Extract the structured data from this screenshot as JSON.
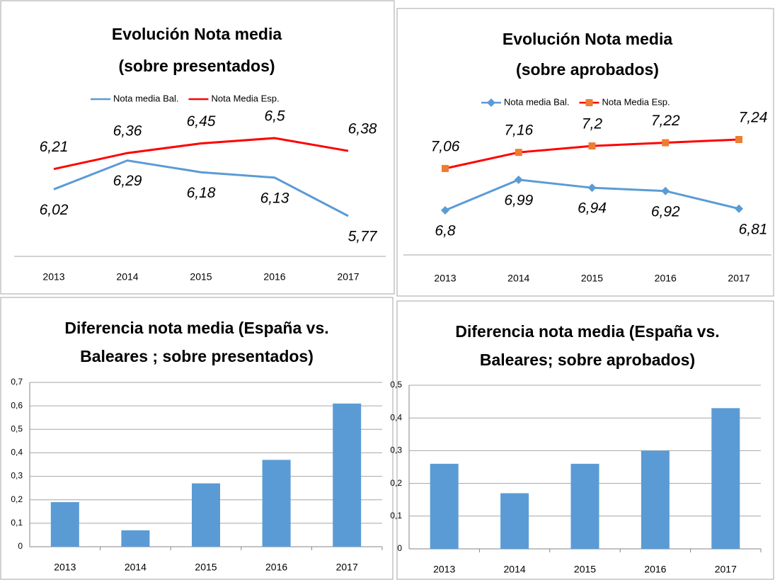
{
  "chart_data": [
    {
      "type": "line",
      "title": [
        "Evolución Nota media",
        "(sobre presentados)"
      ],
      "categories": [
        "2013",
        "2014",
        "2015",
        "2016",
        "2017"
      ],
      "series": [
        {
          "name": "Nota media Bal.",
          "color": "#5b9bd5",
          "values": [
            6.02,
            6.29,
            6.18,
            6.13,
            5.77
          ],
          "value_labels": [
            "6,02",
            "6,29",
            "6,18",
            "6,13",
            "5,77"
          ]
        },
        {
          "name": "Nota Media Esp.",
          "color": "#ff0000",
          "values": [
            6.21,
            6.36,
            6.45,
            6.5,
            6.38
          ],
          "value_labels": [
            "6,21",
            "6,36",
            "6,45",
            "6,5",
            "6,38"
          ]
        }
      ],
      "legend": "top"
    },
    {
      "type": "line",
      "title": [
        "Evolución  Nota media",
        "(sobre aprobados)"
      ],
      "categories": [
        "2013",
        "2014",
        "2015",
        "2016",
        "2017"
      ],
      "series": [
        {
          "name": "Nota media Bal.",
          "color": "#5b9bd5",
          "marker": "diamond",
          "values": [
            6.8,
            6.99,
            6.94,
            6.92,
            6.81
          ],
          "value_labels": [
            "6,8",
            "6,99",
            "6,94",
            "6,92",
            "6,81"
          ]
        },
        {
          "name": "Nota Media Esp.",
          "color": "#ff0000",
          "marker": "square",
          "marker_color": "#ed7d31",
          "values": [
            7.06,
            7.16,
            7.2,
            7.22,
            7.24
          ],
          "value_labels": [
            "7,06",
            "7,16",
            "7,2",
            "7,22",
            "7,24"
          ]
        }
      ],
      "legend": "top"
    },
    {
      "type": "bar",
      "title": [
        "Diferencia nota media (España vs.",
        "Baleares ; sobre presentados)"
      ],
      "categories": [
        "2013",
        "2014",
        "2015",
        "2016",
        "2017"
      ],
      "values": [
        0.19,
        0.07,
        0.27,
        0.37,
        0.61
      ],
      "color": "#5b9bd5",
      "ylim": [
        0,
        0.7
      ],
      "yticks": [
        0,
        {
          "value": 0.1,
          "label": "0,1"
        },
        {
          "value": 0.2,
          "label": "0,2"
        },
        {
          "value": 0.3,
          "label": "0,3"
        },
        {
          "value": 0.4,
          "label": "0,4"
        },
        {
          "value": 0.5,
          "label": "0,5"
        },
        {
          "value": 0.6,
          "label": "0,6"
        },
        {
          "value": 0.7,
          "label": "0,7"
        }
      ],
      "grid": true
    },
    {
      "type": "bar",
      "title": [
        "Diferencia nota media (España vs.",
        "Baleares; sobre aprobados)"
      ],
      "categories": [
        "2013",
        "2014",
        "2015",
        "2016",
        "2017"
      ],
      "values": [
        0.26,
        0.17,
        0.26,
        0.3,
        0.43
      ],
      "color": "#5b9bd5",
      "ylim": [
        0,
        0.5
      ],
      "yticks": [
        0,
        {
          "value": 0.1,
          "label": "0,1"
        },
        {
          "value": 0.2,
          "label": "0,2"
        },
        {
          "value": 0.3,
          "label": "0,3"
        },
        {
          "value": 0.4,
          "label": "0,4"
        },
        {
          "value": 0.5,
          "label": "0,5"
        }
      ],
      "grid": true
    }
  ]
}
